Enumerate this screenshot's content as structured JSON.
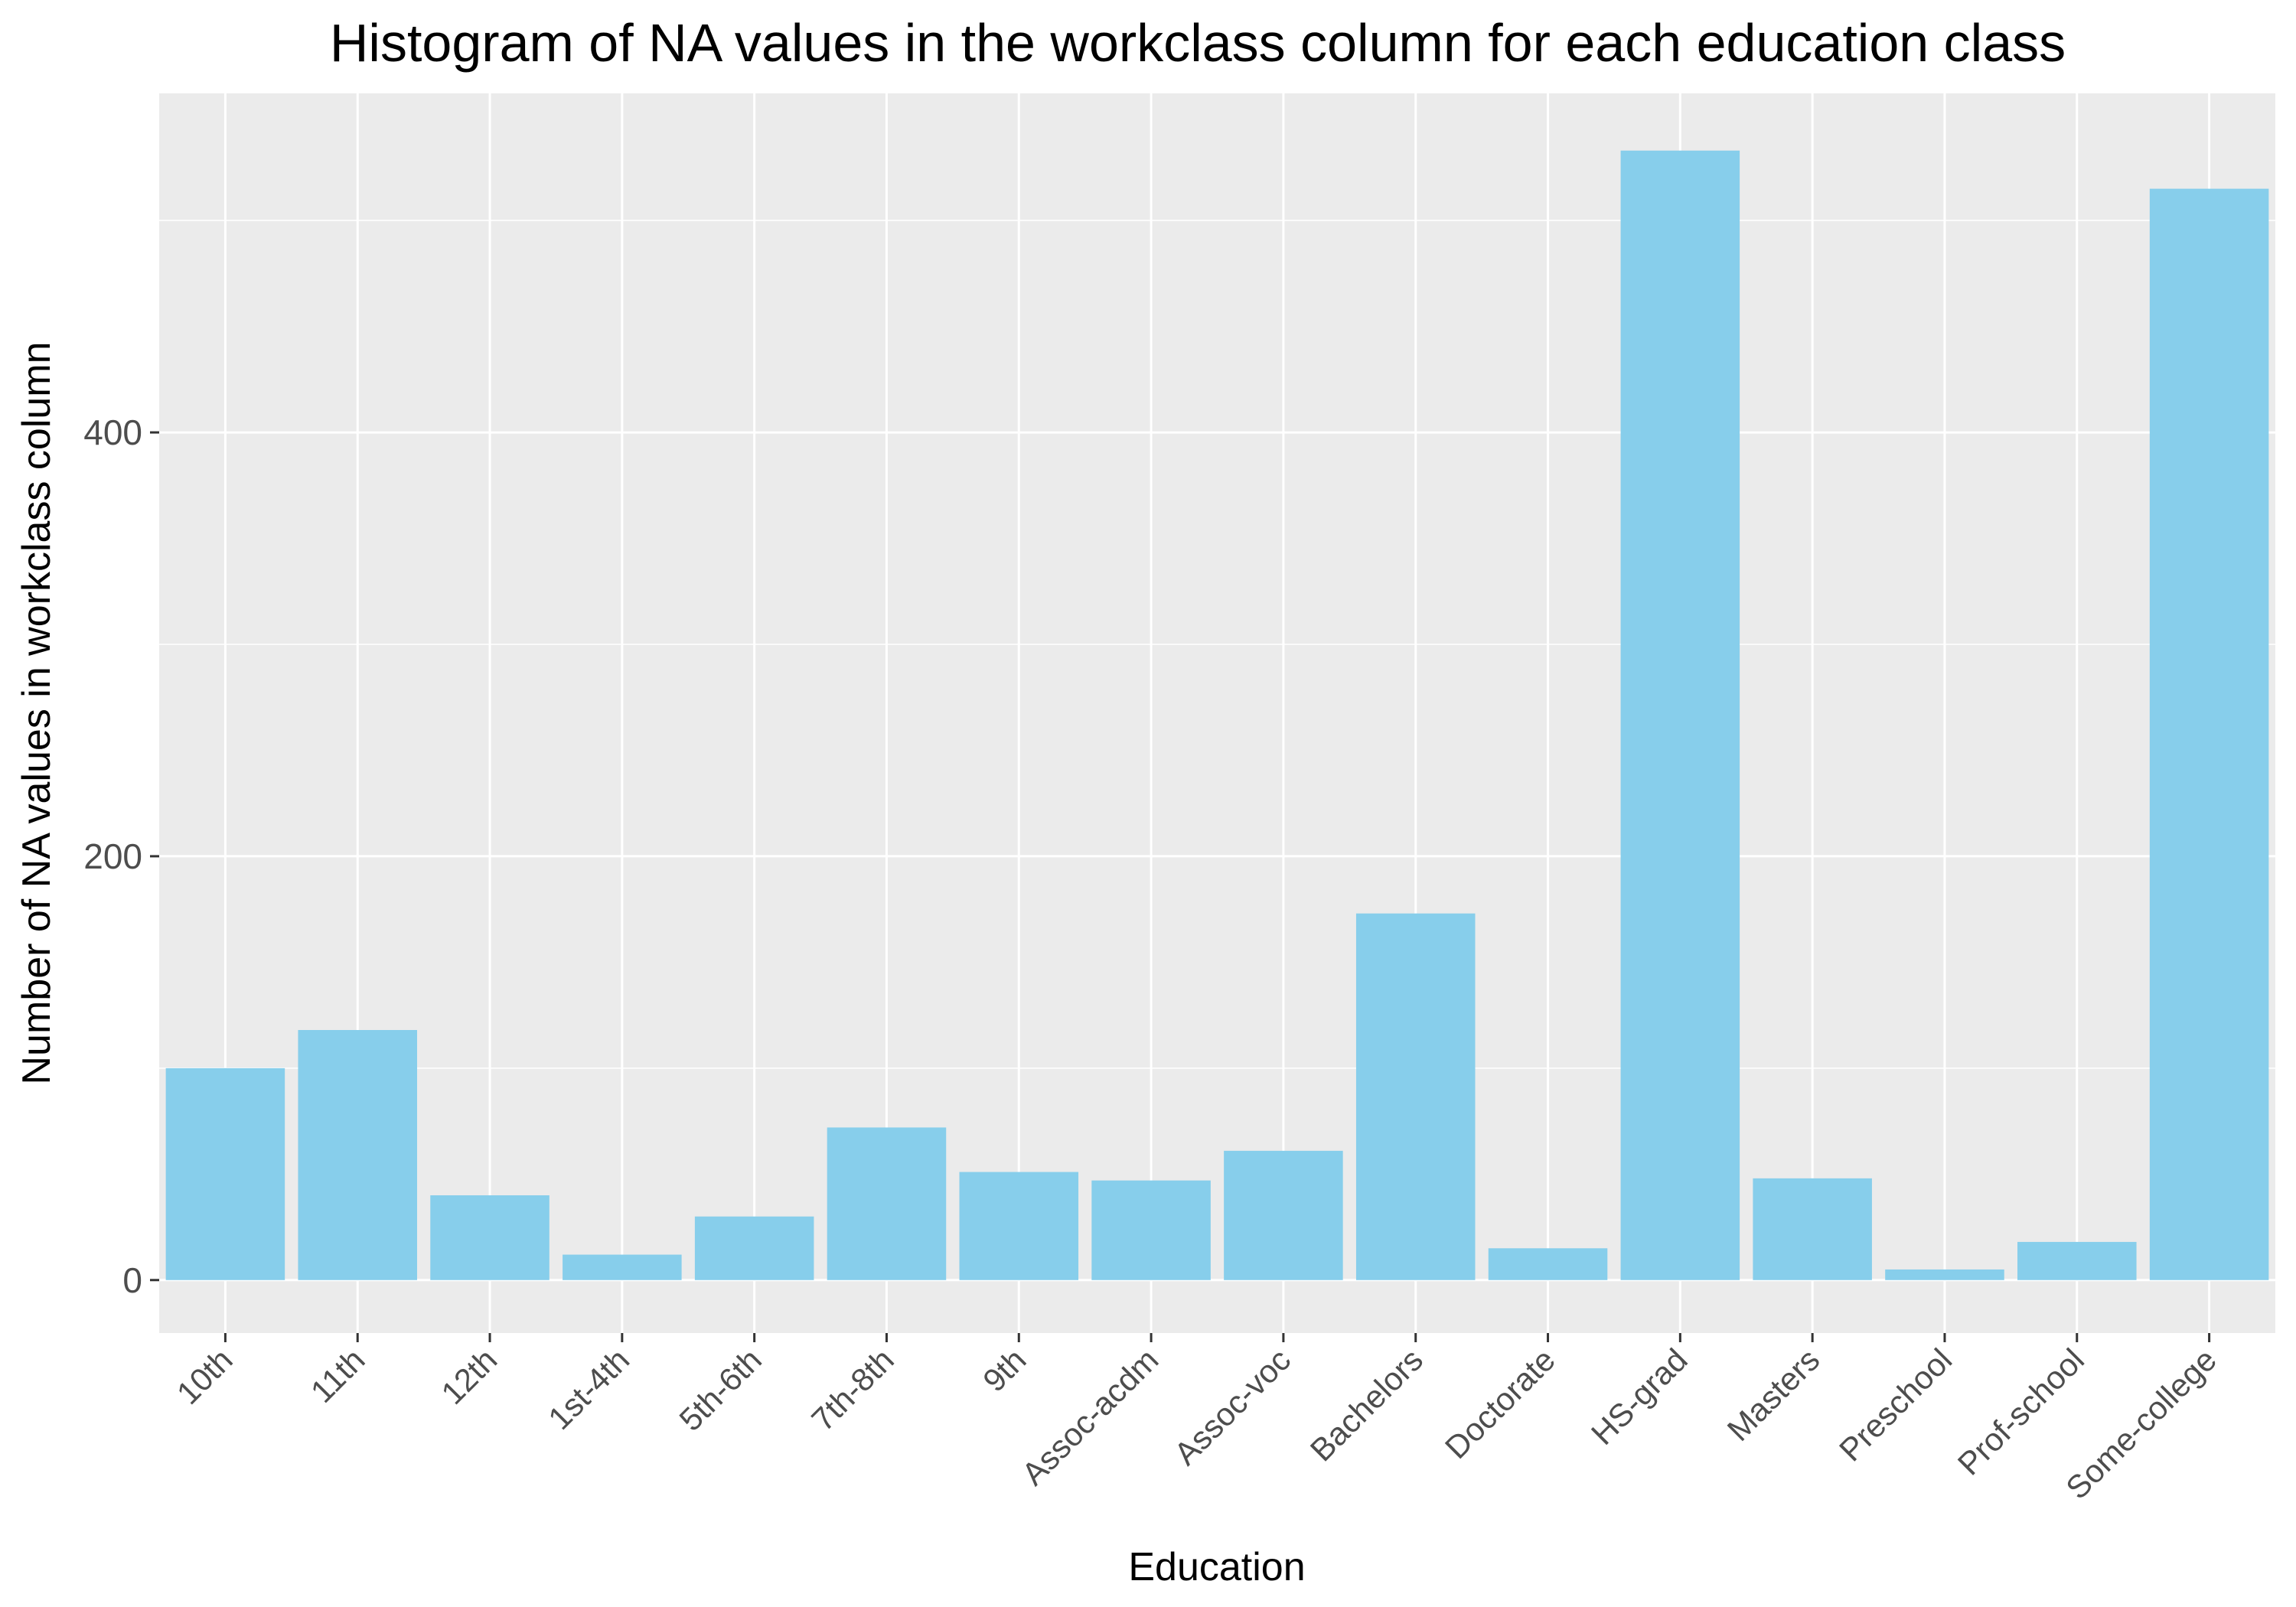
{
  "chart_data": {
    "type": "bar",
    "title": "Histogram of NA values in the workclass column for each education class",
    "xlabel": "Education",
    "ylabel": "Number of NA values in workclass column",
    "categories": [
      "10th",
      "11th",
      "12th",
      "1st-4th",
      "5th-6th",
      "7th-8th",
      "9th",
      "Assoc-acdm",
      "Assoc-voc",
      "Bachelors",
      "Doctorate",
      "HS-grad",
      "Masters",
      "Preschool",
      "Prof-school",
      "Some-college"
    ],
    "values": [
      100,
      118,
      40,
      12,
      30,
      72,
      51,
      47,
      61,
      173,
      15,
      533,
      48,
      5,
      18,
      515
    ],
    "ylim": [
      -25,
      560
    ],
    "yticks": [
      0,
      200,
      400
    ],
    "bar_color": "#87ceeb",
    "panel_color": "#ebebeb",
    "grid": true,
    "legend": "none"
  }
}
